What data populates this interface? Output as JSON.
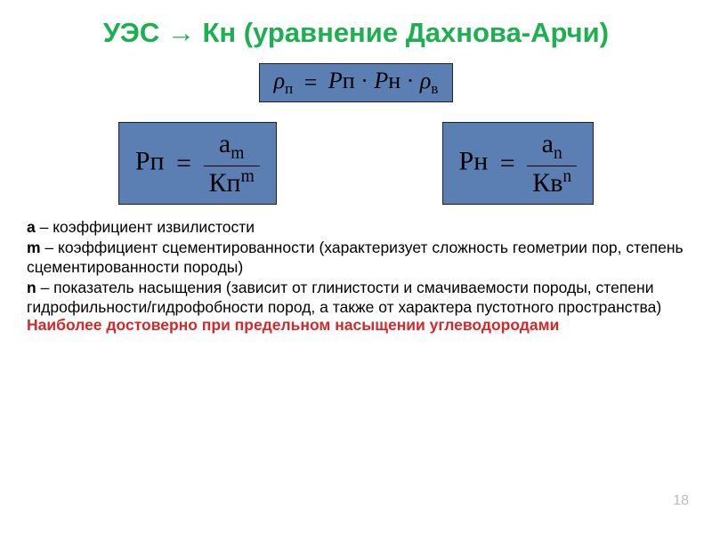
{
  "title": "УЭС → Кн (уравнение Дахнова-Арчи)",
  "eq_top": {
    "lhs": "ρ",
    "lhs_sub": "п",
    "t1": "Р",
    "t1_sub": "п",
    "t2": "Р",
    "t2_sub": "н",
    "t3": "ρ",
    "t3_sub": "в"
  },
  "eq_pp": {
    "lhs": "Рп",
    "num": "a",
    "num_sub": "m",
    "den": "Кп",
    "den_sup": "m"
  },
  "eq_pn": {
    "lhs": "Рн",
    "num": "a",
    "num_sub": "n",
    "den": "Кв",
    "den_sup": "n"
  },
  "desc": {
    "a_bold": "a",
    "a_text": " – коэффициент извилистости",
    "m_bold": "m",
    "m_text": " – коэффициент сцементированности (характеризует сложность геометрии пор, степень сцементированности породы)",
    "n_bold": "n",
    "n_text": " – показатель насыщения (зависит от глинистости и смачиваемости породы, степени гидрофильности/гидрофобности пород, а также от характера пустотного пространства)"
  },
  "footnote": "Наиболее достоверно при предельном насыщении углеводородами",
  "slidenum": "18",
  "colors": {
    "title": "#1cb050",
    "box_bg": "#5b7fb2",
    "box_border": "#222222",
    "footnote": "#d3292a",
    "slidenum": "#bdbdbd",
    "text": "#000000",
    "bg": "#ffffff"
  }
}
